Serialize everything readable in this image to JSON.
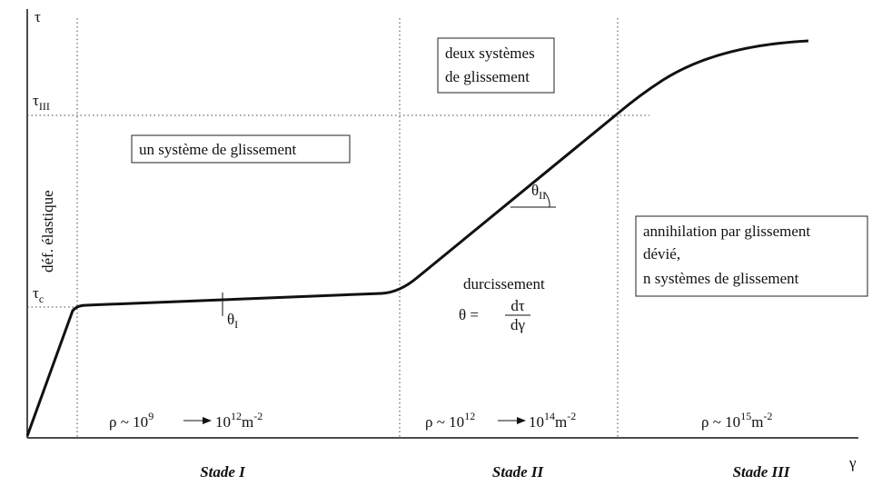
{
  "axes": {
    "y_label": "τ",
    "x_label": "γ"
  },
  "levels": {
    "tau_III": {
      "symbol": "τ",
      "subscript": "III"
    },
    "tau_c": {
      "symbol": "τ",
      "subscript": "c"
    }
  },
  "elastic_label": "déf. élastique",
  "regions": [
    {
      "label_lines": [
        "un système de glissement"
      ],
      "density": {
        "base": "ρ ~ 10",
        "exp": "9",
        "to_base": "10",
        "to_exp": "12",
        "unit": "m",
        "unit_exp": "-2"
      },
      "stage": "Stade I"
    },
    {
      "label_lines": [
        "deux systèmes",
        "de glissement"
      ],
      "density": {
        "base": "ρ ~ 10",
        "exp": "12",
        "to_base": "10",
        "to_exp": "14",
        "unit": "m",
        "unit_exp": "-2"
      },
      "stage": "Stade II"
    },
    {
      "label_lines": [
        "annihilation par glissement",
        "dévié,",
        "n systèmes de glissement"
      ],
      "density": {
        "base": "ρ ~ 10",
        "exp": "15",
        "unit": "m",
        "unit_exp": "-2"
      },
      "stage": "Stade III"
    }
  ],
  "angles": {
    "theta_I": {
      "symbol": "θ",
      "subscript": "I"
    },
    "theta_II": {
      "symbol": "θ",
      "subscript": "II"
    }
  },
  "hardening": {
    "label": "durcissement",
    "lhs": "θ =",
    "numerator": "dτ",
    "denominator": "dγ"
  }
}
